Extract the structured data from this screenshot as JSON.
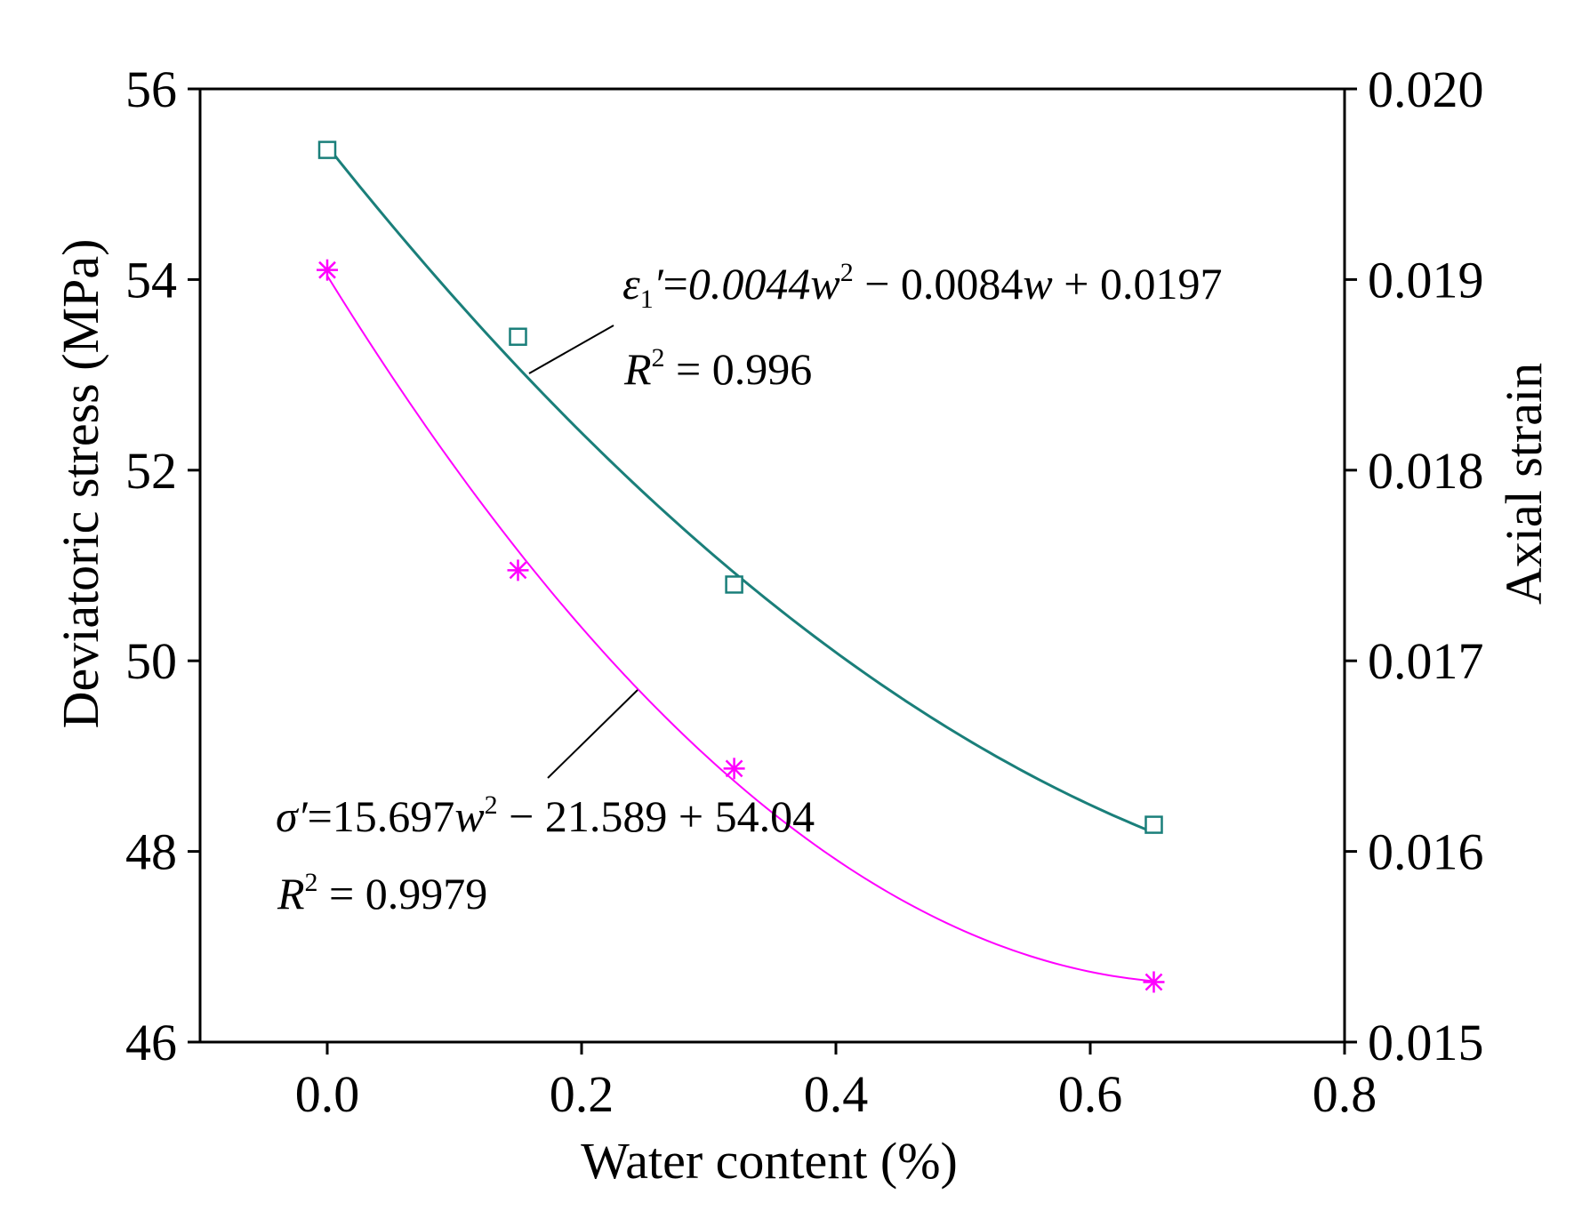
{
  "chart_data": {
    "type": "scatter",
    "xlabel": "Water content (%)",
    "ylabel_left": "Deviatoric stress (MPa)",
    "ylabel_right": "Axial strain",
    "xlim": [
      -0.1,
      0.8
    ],
    "ylim_left": [
      46,
      56
    ],
    "ylim_right": [
      0.015,
      0.02
    ],
    "x_ticks": [
      "0.0",
      "0.2",
      "0.4",
      "0.6",
      "0.8"
    ],
    "y_left_ticks": [
      "46",
      "48",
      "50",
      "52",
      "54",
      "56"
    ],
    "y_right_ticks": [
      "0.015",
      "0.016",
      "0.017",
      "0.018",
      "0.019",
      "0.020"
    ],
    "series": [
      {
        "name": "Axial strain",
        "axis": "right",
        "marker": "square",
        "color": "#1a7f7a",
        "x": [
          0.0,
          0.15,
          0.32,
          0.65
        ],
        "y": [
          0.01968,
          0.0187,
          0.0174,
          0.01614
        ],
        "fit": {
          "a": 0.0044,
          "b": -0.0084,
          "c": 0.0197
        },
        "equation": {
          "lhs": "ε",
          "sub": "1",
          "prime": "′",
          "eq": "=",
          "coef_a": "0.0044",
          "var": "w",
          "sup": "2",
          "rest1": " − 0.0084",
          "var2": "w",
          "rest2": " + 0.0197",
          "r2_var": "R",
          "r2_sup": "2",
          "r2_val": " = 0.996"
        }
      },
      {
        "name": "Deviatoric stress",
        "axis": "left",
        "marker": "asterisk",
        "color": "#ff00ff",
        "x": [
          0.0,
          0.15,
          0.32,
          0.65
        ],
        "y": [
          54.1,
          50.95,
          48.87,
          46.63
        ],
        "fit": {
          "a": 15.697,
          "b": -21.589,
          "c": 54.04
        },
        "equation": {
          "lhs": "σ′",
          "eq": "=15.697",
          "var": "w",
          "sup": "2",
          "rest": " − 21.589 + 54.04",
          "r2_var": "R",
          "r2_sup": "2",
          "r2_val": " = 0.9979"
        }
      }
    ]
  }
}
